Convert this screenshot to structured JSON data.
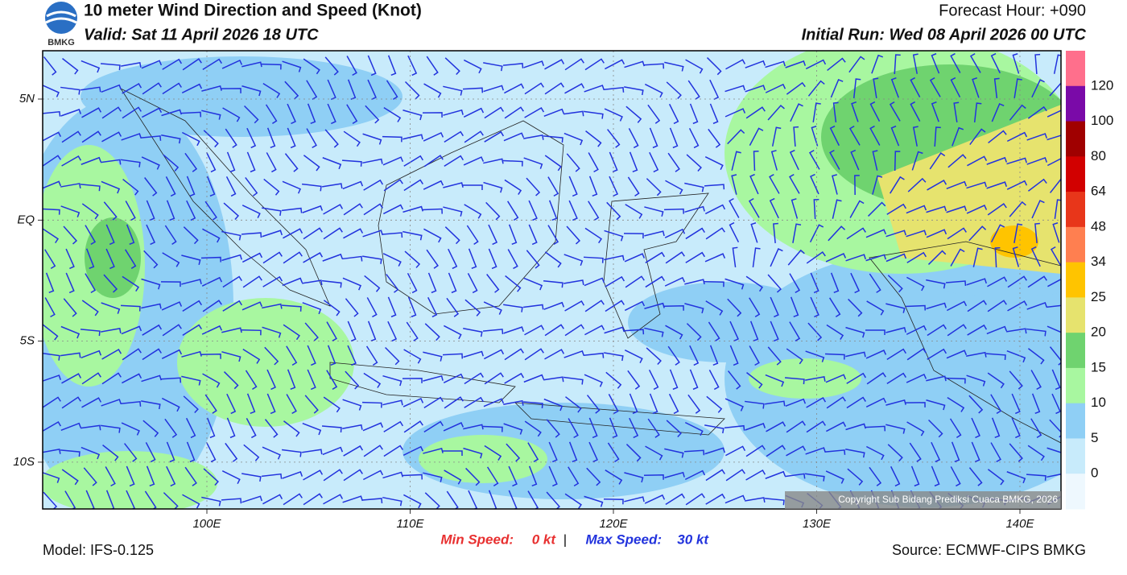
{
  "header": {
    "logo": "BMKG",
    "title": "10 meter Wind Direction and Speed (Knot)",
    "valid": "Valid: Sat 11 April 2026 18 UTC",
    "forecast_hour": "Forecast Hour: +090",
    "initial_run": "Initial Run: Wed 08 April 2026 00 UTC"
  },
  "map": {
    "lon_labels": [
      "100E",
      "110E",
      "120E",
      "130E",
      "140E"
    ],
    "lat_labels": [
      "5N",
      "EQ",
      "5S",
      "10S"
    ],
    "copyright": "Copyright Sub Bidang Prediksi Cuaca BMKG, 2026"
  },
  "colorbar": {
    "colors": [
      "#ff6f8c",
      "#7a0aa8",
      "#a00000",
      "#d20000",
      "#e8361a",
      "#ff7f50",
      "#ffc400",
      "#e6e36e",
      "#6fd36f",
      "#a8f7a0",
      "#8fcff5",
      "#c8ebfb",
      "#eef8fe"
    ],
    "labels": [
      "120",
      "100",
      "80",
      "64",
      "48",
      "34",
      "25",
      "20",
      "15",
      "10",
      "5",
      "0"
    ]
  },
  "footer": {
    "model": "Model: IFS-0.125",
    "min_label": "Min Speed:",
    "min_value": "0 kt",
    "separator": "|",
    "max_label": "Max Speed:",
    "max_value": "30 kt",
    "source": "Source: ECMWF-CIPS BMKG"
  }
}
